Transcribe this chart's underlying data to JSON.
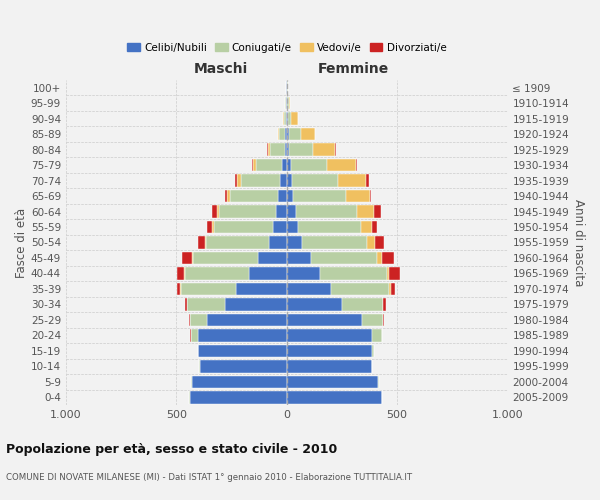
{
  "age_groups": [
    "0-4",
    "5-9",
    "10-14",
    "15-19",
    "20-24",
    "25-29",
    "30-34",
    "35-39",
    "40-44",
    "45-49",
    "50-54",
    "55-59",
    "60-64",
    "65-69",
    "70-74",
    "75-79",
    "80-84",
    "85-89",
    "90-94",
    "95-99",
    "100+"
  ],
  "birth_years": [
    "2005-2009",
    "2000-2004",
    "1995-1999",
    "1990-1994",
    "1985-1989",
    "1980-1984",
    "1975-1979",
    "1970-1974",
    "1965-1969",
    "1960-1964",
    "1955-1959",
    "1950-1954",
    "1945-1949",
    "1940-1944",
    "1935-1939",
    "1930-1934",
    "1925-1929",
    "1920-1924",
    "1915-1919",
    "1910-1914",
    "≤ 1909"
  ],
  "males": {
    "celibe": [
      440,
      430,
      395,
      400,
      400,
      360,
      280,
      230,
      170,
      130,
      80,
      60,
      50,
      40,
      30,
      20,
      10,
      8,
      4,
      3,
      2
    ],
    "coniugato": [
      2,
      2,
      2,
      2,
      35,
      80,
      170,
      250,
      290,
      295,
      285,
      270,
      255,
      215,
      175,
      120,
      65,
      25,
      10,
      3,
      2
    ],
    "vedovo": [
      0,
      0,
      0,
      0,
      0,
      0,
      1,
      2,
      3,
      5,
      5,
      8,
      10,
      15,
      18,
      12,
      10,
      5,
      2,
      0,
      0
    ],
    "divorziato": [
      0,
      0,
      0,
      0,
      2,
      3,
      8,
      15,
      35,
      45,
      30,
      25,
      25,
      8,
      10,
      5,
      3,
      2,
      0,
      0,
      0
    ]
  },
  "females": {
    "nubile": [
      430,
      415,
      385,
      385,
      385,
      340,
      250,
      200,
      150,
      110,
      70,
      50,
      40,
      30,
      25,
      18,
      10,
      8,
      4,
      3,
      2
    ],
    "coniugata": [
      2,
      2,
      2,
      10,
      45,
      95,
      185,
      265,
      305,
      300,
      295,
      285,
      280,
      240,
      205,
      165,
      110,
      55,
      15,
      5,
      3
    ],
    "vedova": [
      0,
      0,
      0,
      0,
      0,
      1,
      3,
      5,
      10,
      20,
      35,
      50,
      75,
      105,
      130,
      130,
      100,
      65,
      30,
      8,
      2
    ],
    "divorziata": [
      0,
      0,
      0,
      0,
      2,
      4,
      10,
      18,
      50,
      55,
      40,
      22,
      30,
      8,
      12,
      5,
      3,
      2,
      0,
      0,
      0
    ]
  },
  "color_celibe": "#4472c4",
  "color_coniugato": "#b8cfa4",
  "color_vedovo": "#f0c060",
  "color_divorziato": "#cc2222",
  "xlim": 1000,
  "title": "Popolazione per età, sesso e stato civile - 2010",
  "subtitle": "COMUNE DI NOVATE MILANESE (MI) - Dati ISTAT 1° gennaio 2010 - Elaborazione TUTTITALIA.IT",
  "ylabel_left": "Fasce di età",
  "ylabel_right": "Anni di nascita",
  "xlabel_left": "Maschi",
  "xlabel_right": "Femmine",
  "legend_labels": [
    "Celibi/Nubili",
    "Coniugati/e",
    "Vedovi/e",
    "Divorziati/e"
  ],
  "bg_color": "#f2f2f2",
  "grid_color": "#cccccc"
}
